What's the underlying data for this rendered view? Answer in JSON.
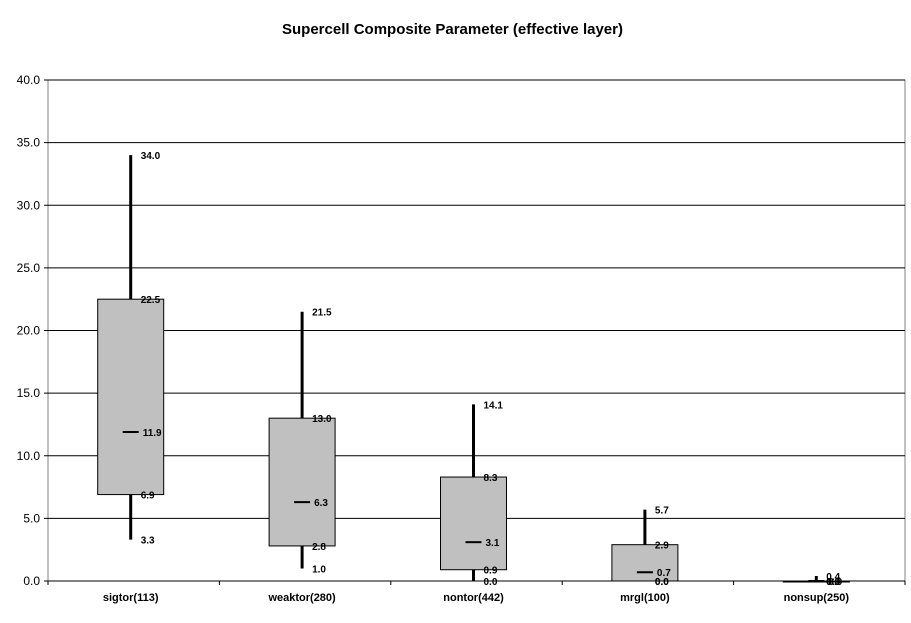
{
  "chart_data": {
    "type": "box",
    "title": "Supercell Composite Parameter (effective layer)",
    "xlabel": "",
    "ylabel": "",
    "ylim": [
      0,
      40
    ],
    "yticks": [
      "0.0",
      "5.0",
      "10.0",
      "15.0",
      "20.0",
      "25.0",
      "30.0",
      "35.0",
      "40.0"
    ],
    "grid": true,
    "legend": "none",
    "colors": {
      "box_fill": "#c0c0c0",
      "box_stroke": "#000000",
      "whisker": "#000000",
      "grid": "#000000"
    },
    "categories": [
      "sigtor(113)",
      "weaktor(280)",
      "nontor(442)",
      "mrgl(100)",
      "nonsup(250)"
    ],
    "series": [
      {
        "category": "sigtor(113)",
        "min": 3.3,
        "q1": 6.9,
        "median": 11.9,
        "q3": 22.5,
        "max": 34.0,
        "labels": {
          "min": "3.3",
          "q1": "6.9",
          "median": "11.9",
          "q3": "22.5",
          "max": "34.0"
        }
      },
      {
        "category": "weaktor(280)",
        "min": 1.0,
        "q1": 2.8,
        "median": 6.3,
        "q3": 13.0,
        "max": 21.5,
        "labels": {
          "min": "1.0",
          "q1": "2.8",
          "median": "6.3",
          "q3": "13.0",
          "max": "21.5"
        }
      },
      {
        "category": "nontor(442)",
        "min": 0.0,
        "q1": 0.9,
        "median": 3.1,
        "q3": 8.3,
        "max": 14.1,
        "labels": {
          "min": "0.0",
          "q1": "0.9",
          "median": "3.1",
          "q3": "8.3",
          "max": "14.1"
        }
      },
      {
        "category": "mrgl(100)",
        "min": 0.0,
        "q1": 0.0,
        "median": 0.7,
        "q3": 2.9,
        "max": 5.7,
        "labels": {
          "min": "0.0",
          "q1": "0.0",
          "median": "0.7",
          "q3": "2.9",
          "max": "5.7"
        }
      },
      {
        "category": "nonsup(250)",
        "min": 0.0,
        "q1": 0.0,
        "median": 0.0,
        "q3": 0.0,
        "max": 0.4,
        "labels": {
          "min": "0.0",
          "q1": "0.0",
          "median": "0.0",
          "q3": "0.0",
          "max": "0.4"
        }
      }
    ]
  }
}
